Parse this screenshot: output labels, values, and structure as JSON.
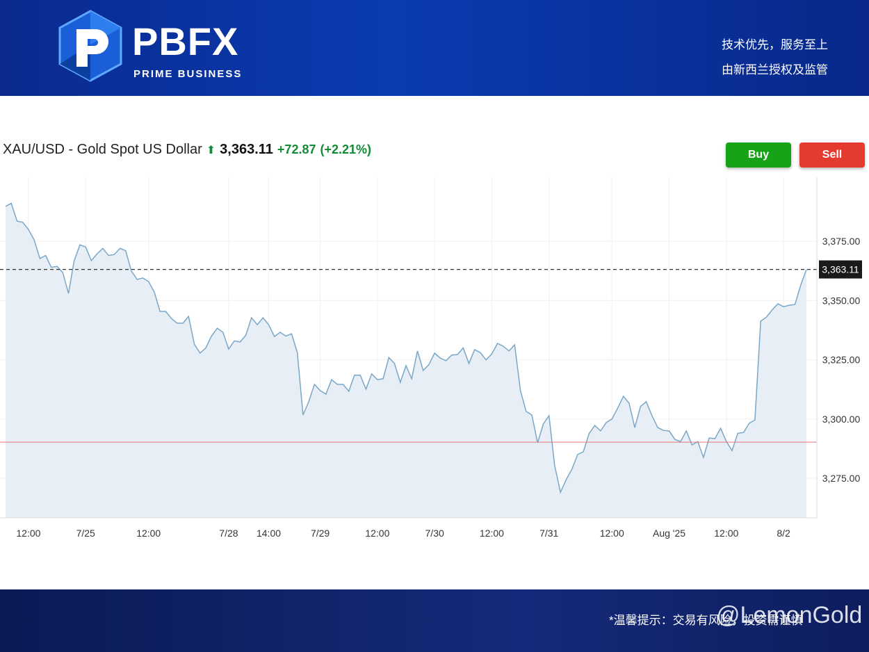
{
  "header": {
    "brand": "PBFX",
    "brand_sub": "PRIME BUSINESS",
    "tagline_1": "技术优先，服务至上",
    "tagline_2": "由新西兰授权及监管"
  },
  "chart_data": {
    "type": "line",
    "title": "XAU/USD - Gold Spot US Dollar",
    "change": "+72.87",
    "change_pct": "(+2.21%)",
    "price": {
      "value": 3363.11,
      "label": "3,363.11"
    },
    "reference_line": 3290.24,
    "reference_color": "#e57373",
    "categories": [
      null,
      null,
      null,
      null,
      "12:00",
      null,
      null,
      null,
      null,
      null,
      null,
      null,
      null,
      null,
      "7/25",
      null,
      null,
      null,
      null,
      null,
      null,
      null,
      null,
      null,
      null,
      "12:00",
      null,
      null,
      null,
      null,
      null,
      null,
      null,
      null,
      null,
      null,
      null,
      null,
      null,
      "7/28",
      null,
      null,
      null,
      null,
      null,
      null,
      "14:00",
      null,
      null,
      null,
      null,
      null,
      null,
      null,
      null,
      "7/29",
      null,
      null,
      null,
      null,
      null,
      null,
      null,
      null,
      null,
      "12:00",
      null,
      null,
      null,
      null,
      null,
      null,
      null,
      null,
      null,
      "7/30",
      null,
      null,
      null,
      null,
      null,
      null,
      null,
      null,
      null,
      "12:00",
      null,
      null,
      null,
      null,
      null,
      null,
      null,
      null,
      null,
      "7/31",
      null,
      null,
      null,
      null,
      null,
      null,
      null,
      null,
      null,
      null,
      "12:00",
      null,
      null,
      null,
      null,
      null,
      null,
      null,
      null,
      null,
      "Aug '25",
      null,
      null,
      null,
      null,
      null,
      null,
      null,
      null,
      null,
      "12:00",
      null,
      null,
      null,
      null,
      null,
      null,
      null,
      null,
      null,
      "8/2",
      null,
      null,
      null,
      null
    ],
    "values": [
      3389.7,
      3391,
      3383.5,
      3383,
      3380,
      3375.6,
      3367.7,
      3369,
      3364,
      3364.4,
      3361.8,
      3353,
      3366.8,
      3373.5,
      3372.6,
      3366.8,
      3369.7,
      3372,
      3369,
      3369.4,
      3372,
      3371,
      3362.4,
      3358.9,
      3359.5,
      3358,
      3353.6,
      3345.4,
      3345.4,
      3342.4,
      3340.4,
      3340.4,
      3343.3,
      3331.6,
      3327.8,
      3330,
      3335,
      3338.3,
      3336.6,
      3329.5,
      3333,
      3332.5,
      3335.4,
      3342.7,
      3339.8,
      3342.7,
      3339.8,
      3334.8,
      3336.6,
      3335,
      3336,
      3328,
      3301.7,
      3307.3,
      3314.6,
      3312,
      3310.5,
      3316.6,
      3314.6,
      3314.6,
      3311.7,
      3318.5,
      3318.5,
      3312.6,
      3319,
      3316.6,
      3317,
      3326,
      3323.4,
      3315.5,
      3322.5,
      3317,
      3328.7,
      3320.5,
      3322.9,
      3327.8,
      3325.7,
      3324.6,
      3327,
      3327.2,
      3330,
      3323.4,
      3329.3,
      3328,
      3324.9,
      3327.5,
      3331.9,
      3330.7,
      3328.7,
      3331.3,
      3312,
      3303.2,
      3301.7,
      3290,
      3297.9,
      3301.4,
      3280.3,
      3269.1,
      3274.4,
      3278.8,
      3285,
      3286.2,
      3293.8,
      3297.3,
      3295,
      3298.5,
      3300,
      3304.6,
      3309.6,
      3306.7,
      3296.4,
      3305.3,
      3307.3,
      3301.4,
      3296.4,
      3295.2,
      3295,
      3291.4,
      3290.5,
      3295,
      3289.1,
      3290.5,
      3283.8,
      3292,
      3291.7,
      3296.1,
      3290.5,
      3286.7,
      3294,
      3294.3,
      3298.2,
      3299.6,
      3341.3,
      3343,
      3346,
      3348.6,
      3347.4,
      3348,
      3348.3,
      3356.5,
      3363.11
    ],
    "color": "#7aa7c7",
    "fill": "#e7eef5",
    "ylim": [
      3258.3,
      3402
    ],
    "yticks": [
      {
        "value": 3275,
        "label": "3,275.00"
      },
      {
        "value": 3300,
        "label": "3,300.00"
      },
      {
        "value": 3325,
        "label": "3,325.00"
      },
      {
        "value": 3350,
        "label": "3,350.00"
      },
      {
        "value": 3375,
        "label": "3,375.00"
      }
    ],
    "grid": true
  },
  "buttons": {
    "buy": "Buy",
    "sell": "Sell"
  },
  "footer": {
    "note": "*温馨提示：交易有风险，投资需谨慎",
    "watermark": "@LemonGold"
  }
}
